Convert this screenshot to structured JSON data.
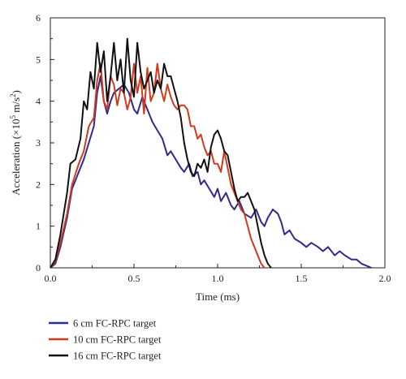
{
  "chart_data": {
    "type": "line",
    "xlabel": "Time (ms)",
    "ylabel_parts": {
      "pre": "Acceleration (×10",
      "exp1": "5",
      "mid": " m/s",
      "exp2": "2",
      "post": ")"
    },
    "xlim": [
      0,
      2
    ],
    "ylim": [
      0,
      6
    ],
    "xticks": [
      "0.0",
      "0.5",
      "1.0",
      "1.5",
      "2.0"
    ],
    "yticks": [
      "0",
      "1",
      "2",
      "3",
      "4",
      "5",
      "6"
    ],
    "grid": false,
    "legend_position": "bottom-left, below plot",
    "series": [
      {
        "name": "6 cm FC-RPC target",
        "color": "#2e2b8f",
        "x": [
          0,
          0.03,
          0.06,
          0.1,
          0.13,
          0.17,
          0.2,
          0.23,
          0.26,
          0.28,
          0.3,
          0.32,
          0.34,
          0.36,
          0.38,
          0.41,
          0.44,
          0.47,
          0.5,
          0.52,
          0.55,
          0.58,
          0.61,
          0.64,
          0.67,
          0.7,
          0.72,
          0.75,
          0.78,
          0.8,
          0.83,
          0.85,
          0.88,
          0.9,
          0.92,
          0.95,
          0.98,
          1.0,
          1.02,
          1.05,
          1.08,
          1.1,
          1.13,
          1.16,
          1.2,
          1.23,
          1.26,
          1.28,
          1.3,
          1.33,
          1.36,
          1.38,
          1.4,
          1.43,
          1.46,
          1.5,
          1.53,
          1.56,
          1.6,
          1.63,
          1.66,
          1.7,
          1.73,
          1.76,
          1.8,
          1.83,
          1.86,
          1.89,
          1.92
        ],
        "y": [
          0,
          0.1,
          0.5,
          1.2,
          1.9,
          2.3,
          2.6,
          3.0,
          3.4,
          4.2,
          4.6,
          4.0,
          3.7,
          4.0,
          4.2,
          4.3,
          4.4,
          4.2,
          3.8,
          3.7,
          4.1,
          3.8,
          3.5,
          3.3,
          3.1,
          2.7,
          2.8,
          2.6,
          2.4,
          2.3,
          2.5,
          2.2,
          2.3,
          2.0,
          2.1,
          1.9,
          1.7,
          1.9,
          1.6,
          1.8,
          1.5,
          1.4,
          1.6,
          1.3,
          1.2,
          1.4,
          1.1,
          1.0,
          1.2,
          1.4,
          1.3,
          1.1,
          0.8,
          0.9,
          0.7,
          0.6,
          0.5,
          0.6,
          0.5,
          0.4,
          0.5,
          0.3,
          0.4,
          0.3,
          0.2,
          0.2,
          0.1,
          0.05,
          0.0
        ]
      },
      {
        "name": "10 cm FC-RPC target",
        "color": "#d23a1e",
        "x": [
          0,
          0.03,
          0.06,
          0.1,
          0.13,
          0.17,
          0.2,
          0.23,
          0.26,
          0.28,
          0.3,
          0.32,
          0.34,
          0.36,
          0.38,
          0.4,
          0.42,
          0.44,
          0.46,
          0.48,
          0.5,
          0.52,
          0.54,
          0.56,
          0.58,
          0.6,
          0.62,
          0.64,
          0.66,
          0.68,
          0.7,
          0.72,
          0.74,
          0.76,
          0.78,
          0.8,
          0.82,
          0.84,
          0.86,
          0.88,
          0.9,
          0.92,
          0.94,
          0.96,
          0.98,
          1.0,
          1.02,
          1.04,
          1.06,
          1.08,
          1.1,
          1.12,
          1.14,
          1.16,
          1.18,
          1.2,
          1.22,
          1.24,
          1.26,
          1.28
        ],
        "y": [
          0,
          0.15,
          0.6,
          1.3,
          2.0,
          2.5,
          2.8,
          3.4,
          3.6,
          4.5,
          4.9,
          4.0,
          3.8,
          4.6,
          4.4,
          3.9,
          4.3,
          4.2,
          3.8,
          4.1,
          4.9,
          4.2,
          4.6,
          3.7,
          4.8,
          4.0,
          4.2,
          4.9,
          4.3,
          4.0,
          4.4,
          4.1,
          3.9,
          3.8,
          3.9,
          3.9,
          3.8,
          3.4,
          3.4,
          3.1,
          3.2,
          2.9,
          2.7,
          2.8,
          2.5,
          2.5,
          2.3,
          2.8,
          2.4,
          2.0,
          1.8,
          1.6,
          1.4,
          1.3,
          1.0,
          0.7,
          0.5,
          0.3,
          0.1,
          0.0
        ]
      },
      {
        "name": "16 cm FC-RPC target",
        "color": "#111111",
        "x": [
          0,
          0.03,
          0.06,
          0.1,
          0.12,
          0.15,
          0.18,
          0.2,
          0.22,
          0.24,
          0.26,
          0.28,
          0.3,
          0.32,
          0.34,
          0.36,
          0.38,
          0.4,
          0.42,
          0.44,
          0.46,
          0.48,
          0.5,
          0.52,
          0.54,
          0.56,
          0.58,
          0.6,
          0.62,
          0.64,
          0.66,
          0.68,
          0.7,
          0.72,
          0.74,
          0.76,
          0.78,
          0.8,
          0.82,
          0.84,
          0.86,
          0.88,
          0.9,
          0.92,
          0.94,
          0.96,
          0.98,
          1.0,
          1.02,
          1.04,
          1.06,
          1.08,
          1.1,
          1.12,
          1.14,
          1.16,
          1.18,
          1.2,
          1.22,
          1.24,
          1.26,
          1.28,
          1.3,
          1.32
        ],
        "y": [
          0,
          0.2,
          0.8,
          1.8,
          2.5,
          2.6,
          3.1,
          4.0,
          3.8,
          4.7,
          4.3,
          5.4,
          4.7,
          5.2,
          4.0,
          4.6,
          5.4,
          4.5,
          5.0,
          4.2,
          5.5,
          4.5,
          4.1,
          5.4,
          4.7,
          4.3,
          4.5,
          4.7,
          4.2,
          4.5,
          4.3,
          4.9,
          4.6,
          4.6,
          4.3,
          4.0,
          3.6,
          3.0,
          2.6,
          2.3,
          2.2,
          2.5,
          2.4,
          2.6,
          2.3,
          2.9,
          3.2,
          3.3,
          3.1,
          2.8,
          2.7,
          2.3,
          1.9,
          1.6,
          1.7,
          1.7,
          1.8,
          1.6,
          1.4,
          1.0,
          0.6,
          0.3,
          0.1,
          0.0
        ]
      }
    ]
  }
}
